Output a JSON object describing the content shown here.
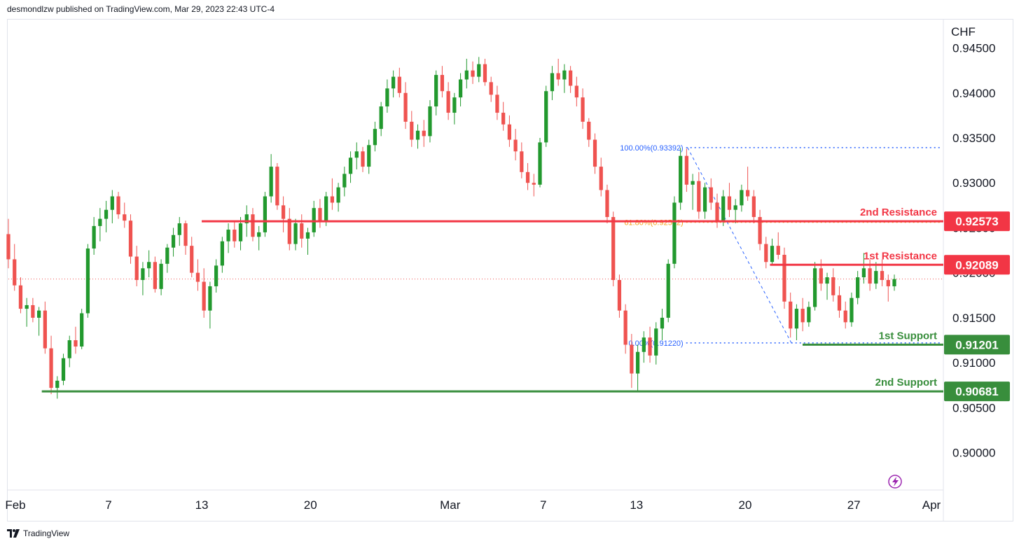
{
  "header": {
    "text": "desmondlzw published on TradingView.com, Mar 29, 2023 22:43 UTC-4"
  },
  "footer": {
    "brand": "TradingView"
  },
  "colors": {
    "up": "#22992e",
    "down": "#ef5350",
    "resistance": "#f23645",
    "support": "#388e3c",
    "fib": "#2962ff",
    "fib_mid": "#f7a21b",
    "last_price_line": "#ef5350"
  },
  "chart_data": {
    "type": "candlestick",
    "currency": "CHF",
    "ylim": [
      0.896,
      0.948
    ],
    "y_ticks": [
      "0.94500",
      "0.94000",
      "0.93500",
      "0.93000",
      "0.92500",
      "0.92000",
      "0.91500",
      "0.91000",
      "0.90500",
      "0.90000"
    ],
    "x_ticks": [
      {
        "label": "Feb",
        "day": 0
      },
      {
        "label": "7",
        "day": 6
      },
      {
        "label": "13",
        "day": 12
      },
      {
        "label": "20",
        "day": 19
      },
      {
        "label": "Mar",
        "day": 28
      },
      {
        "label": "7",
        "day": 34
      },
      {
        "label": "13",
        "day": 40
      },
      {
        "label": "20",
        "day": 47
      },
      {
        "label": "27",
        "day": 54
      },
      {
        "label": "Apr",
        "day": 59
      }
    ],
    "x_domain": [
      0,
      59
    ],
    "levels": [
      {
        "name": "2nd Resistance",
        "value": "0.92573",
        "price": 0.92573,
        "kind": "resistance",
        "start_day": 12.0
      },
      {
        "name": "1st Resistance",
        "value": "0.92089",
        "price": 0.92089,
        "kind": "resistance",
        "start_day": 48.6
      },
      {
        "name": "1st Support",
        "value": "0.91201",
        "price": 0.91201,
        "kind": "support",
        "start_day": 50.7
      },
      {
        "name": "2nd Support",
        "value": "0.90681",
        "price": 0.90681,
        "kind": "support",
        "start_day": 1.7
      }
    ],
    "fib": {
      "top_label": "100.00%(0.93392)",
      "top": 0.93392,
      "mid_label": "61.80%(0.92562)",
      "mid": 0.92562,
      "bottom_label": "0.00%(0.91220)",
      "bottom": 0.9122,
      "start_day": 43.2
    },
    "last_price": 0.9193,
    "candles": [
      [
        0.9243,
        0.926,
        0.9205,
        0.9215
      ],
      [
        0.9215,
        0.9232,
        0.918,
        0.9186
      ],
      [
        0.9186,
        0.9195,
        0.9155,
        0.916
      ],
      [
        0.916,
        0.9172,
        0.914,
        0.9164
      ],
      [
        0.9164,
        0.9172,
        0.9145,
        0.915
      ],
      [
        0.915,
        0.9162,
        0.913,
        0.9158
      ],
      [
        0.9158,
        0.9168,
        0.911,
        0.9116
      ],
      [
        0.9116,
        0.913,
        0.9065,
        0.9072
      ],
      [
        0.9072,
        0.9085,
        0.906,
        0.908
      ],
      [
        0.908,
        0.911,
        0.9075,
        0.9105
      ],
      [
        0.9105,
        0.913,
        0.9095,
        0.9125
      ],
      [
        0.9125,
        0.914,
        0.911,
        0.9118
      ],
      [
        0.9118,
        0.916,
        0.9115,
        0.9155
      ],
      [
        0.9155,
        0.9232,
        0.915,
        0.9227
      ],
      [
        0.9227,
        0.9262,
        0.922,
        0.9252
      ],
      [
        0.9252,
        0.9272,
        0.9235,
        0.926
      ],
      [
        0.926,
        0.928,
        0.9245,
        0.927
      ],
      [
        0.927,
        0.9292,
        0.9255,
        0.9285
      ],
      [
        0.9285,
        0.929,
        0.926,
        0.9265
      ],
      [
        0.9265,
        0.9278,
        0.925,
        0.9258
      ],
      [
        0.9258,
        0.9265,
        0.921,
        0.9218
      ],
      [
        0.9218,
        0.923,
        0.9185,
        0.9192
      ],
      [
        0.9192,
        0.9212,
        0.9175,
        0.9205
      ],
      [
        0.9205,
        0.9225,
        0.9195,
        0.9212
      ],
      [
        0.9212,
        0.9218,
        0.9178,
        0.9182
      ],
      [
        0.9182,
        0.9215,
        0.9175,
        0.921
      ],
      [
        0.921,
        0.9232,
        0.92,
        0.9228
      ],
      [
        0.9228,
        0.925,
        0.9218,
        0.9242
      ],
      [
        0.9242,
        0.9262,
        0.923,
        0.9255
      ],
      [
        0.9255,
        0.9258,
        0.922,
        0.923
      ],
      [
        0.923,
        0.924,
        0.9195,
        0.92
      ],
      [
        0.92,
        0.9215,
        0.918,
        0.919
      ],
      [
        0.919,
        0.9205,
        0.915,
        0.9158
      ],
      [
        0.9158,
        0.919,
        0.9138,
        0.9185
      ],
      [
        0.9185,
        0.9215,
        0.9178,
        0.9208
      ],
      [
        0.9208,
        0.924,
        0.92,
        0.9235
      ],
      [
        0.9235,
        0.9255,
        0.9222,
        0.9248
      ],
      [
        0.9248,
        0.9258,
        0.9228,
        0.9235
      ],
      [
        0.9235,
        0.9262,
        0.9225,
        0.9255
      ],
      [
        0.9255,
        0.9275,
        0.924,
        0.9265
      ],
      [
        0.9265,
        0.9272,
        0.9235,
        0.924
      ],
      [
        0.924,
        0.9252,
        0.9225,
        0.9245
      ],
      [
        0.9245,
        0.929,
        0.924,
        0.9285
      ],
      [
        0.9285,
        0.9332,
        0.9278,
        0.9318
      ],
      [
        0.9318,
        0.9322,
        0.927,
        0.9275
      ],
      [
        0.9275,
        0.9285,
        0.9245,
        0.926
      ],
      [
        0.926,
        0.9272,
        0.9225,
        0.9232
      ],
      [
        0.9232,
        0.926,
        0.9225,
        0.9255
      ],
      [
        0.9255,
        0.9265,
        0.9228,
        0.9238
      ],
      [
        0.9238,
        0.925,
        0.922,
        0.9245
      ],
      [
        0.9245,
        0.928,
        0.924,
        0.9272
      ],
      [
        0.9272,
        0.9282,
        0.925,
        0.9258
      ],
      [
        0.9258,
        0.929,
        0.9252,
        0.9285
      ],
      [
        0.9285,
        0.9305,
        0.927,
        0.9278
      ],
      [
        0.9278,
        0.93,
        0.9268,
        0.9295
      ],
      [
        0.9295,
        0.9318,
        0.9285,
        0.931
      ],
      [
        0.931,
        0.9335,
        0.93,
        0.9328
      ],
      [
        0.9328,
        0.9345,
        0.9315,
        0.9335
      ],
      [
        0.9335,
        0.934,
        0.9312,
        0.9318
      ],
      [
        0.9318,
        0.9348,
        0.931,
        0.9342
      ],
      [
        0.9342,
        0.9368,
        0.9335,
        0.936
      ],
      [
        0.936,
        0.939,
        0.9352,
        0.9385
      ],
      [
        0.9385,
        0.9415,
        0.9378,
        0.9405
      ],
      [
        0.9405,
        0.9425,
        0.9395,
        0.9418
      ],
      [
        0.9418,
        0.9428,
        0.9395,
        0.94
      ],
      [
        0.94,
        0.9412,
        0.936,
        0.9368
      ],
      [
        0.9368,
        0.938,
        0.934,
        0.9348
      ],
      [
        0.9348,
        0.9365,
        0.9338,
        0.9358
      ],
      [
        0.9358,
        0.937,
        0.934,
        0.9352
      ],
      [
        0.9352,
        0.9392,
        0.9345,
        0.9385
      ],
      [
        0.9385,
        0.9425,
        0.9375,
        0.942
      ],
      [
        0.942,
        0.943,
        0.9395,
        0.9402
      ],
      [
        0.9402,
        0.9412,
        0.937,
        0.9378
      ],
      [
        0.9378,
        0.94,
        0.9365,
        0.9395
      ],
      [
        0.9395,
        0.9422,
        0.9385,
        0.9415
      ],
      [
        0.9415,
        0.9438,
        0.9405,
        0.9425
      ],
      [
        0.9425,
        0.9435,
        0.941,
        0.9418
      ],
      [
        0.9418,
        0.944,
        0.9412,
        0.9432
      ],
      [
        0.9432,
        0.9438,
        0.9408,
        0.9412
      ],
      [
        0.9412,
        0.9418,
        0.939,
        0.9398
      ],
      [
        0.9398,
        0.9408,
        0.937,
        0.9378
      ],
      [
        0.9378,
        0.939,
        0.9358,
        0.9365
      ],
      [
        0.9365,
        0.9375,
        0.934,
        0.9348
      ],
      [
        0.9348,
        0.936,
        0.9325,
        0.9335
      ],
      [
        0.9335,
        0.9345,
        0.9305,
        0.9312
      ],
      [
        0.9312,
        0.9322,
        0.9292,
        0.93
      ],
      [
        0.93,
        0.931,
        0.9285,
        0.9298
      ],
      [
        0.9298,
        0.935,
        0.9295,
        0.9345
      ],
      [
        0.9345,
        0.9408,
        0.934,
        0.9402
      ],
      [
        0.9402,
        0.943,
        0.9392,
        0.9422
      ],
      [
        0.9422,
        0.9438,
        0.9408,
        0.9415
      ],
      [
        0.9415,
        0.9432,
        0.94,
        0.9425
      ],
      [
        0.9425,
        0.943,
        0.94,
        0.9408
      ],
      [
        0.9408,
        0.9418,
        0.9385,
        0.9395
      ],
      [
        0.9395,
        0.9405,
        0.936,
        0.9368
      ],
      [
        0.9368,
        0.9372,
        0.934,
        0.9348
      ],
      [
        0.9348,
        0.9355,
        0.931,
        0.9318
      ],
      [
        0.9318,
        0.9328,
        0.9285,
        0.9292
      ],
      [
        0.9292,
        0.9298,
        0.9255,
        0.9262
      ],
      [
        0.9262,
        0.9268,
        0.9185,
        0.9192
      ],
      [
        0.9192,
        0.9198,
        0.915,
        0.9158
      ],
      [
        0.9158,
        0.9165,
        0.911,
        0.912
      ],
      [
        0.912,
        0.9132,
        0.9072,
        0.9088
      ],
      [
        0.9088,
        0.912,
        0.9068,
        0.9112
      ],
      [
        0.9112,
        0.9135,
        0.91,
        0.9128
      ],
      [
        0.9128,
        0.914,
        0.91,
        0.9108
      ],
      [
        0.9108,
        0.9145,
        0.9098,
        0.9138
      ],
      [
        0.9138,
        0.916,
        0.9125,
        0.915
      ],
      [
        0.915,
        0.9215,
        0.9145,
        0.921
      ],
      [
        0.921,
        0.9285,
        0.9205,
        0.9278
      ],
      [
        0.9278,
        0.9339,
        0.927,
        0.933
      ],
      [
        0.933,
        0.9338,
        0.929,
        0.9298
      ],
      [
        0.9298,
        0.931,
        0.927,
        0.9302
      ],
      [
        0.9302,
        0.9312,
        0.926,
        0.9268
      ],
      [
        0.9268,
        0.93,
        0.926,
        0.9295
      ],
      [
        0.9295,
        0.9305,
        0.927,
        0.9278
      ],
      [
        0.9278,
        0.9288,
        0.925,
        0.9258
      ],
      [
        0.9258,
        0.9292,
        0.9252,
        0.9285
      ],
      [
        0.9285,
        0.93,
        0.9262,
        0.927
      ],
      [
        0.927,
        0.9282,
        0.9255,
        0.9275
      ],
      [
        0.9275,
        0.9298,
        0.9268,
        0.9292
      ],
      [
        0.9292,
        0.9318,
        0.928,
        0.9285
      ],
      [
        0.9285,
        0.9292,
        0.9255,
        0.9262
      ],
      [
        0.9262,
        0.927,
        0.9225,
        0.9232
      ],
      [
        0.9232,
        0.924,
        0.9205,
        0.9212
      ],
      [
        0.9212,
        0.9238,
        0.9208,
        0.923
      ],
      [
        0.923,
        0.9245,
        0.9215,
        0.922
      ],
      [
        0.922,
        0.9228,
        0.916,
        0.9168
      ],
      [
        0.9168,
        0.9178,
        0.9128,
        0.9138
      ],
      [
        0.9138,
        0.9165,
        0.9125,
        0.916
      ],
      [
        0.916,
        0.9172,
        0.9135,
        0.9145
      ],
      [
        0.9145,
        0.9168,
        0.914,
        0.9162
      ],
      [
        0.9162,
        0.9212,
        0.9158,
        0.9205
      ],
      [
        0.9205,
        0.9215,
        0.918,
        0.9188
      ],
      [
        0.9188,
        0.92,
        0.917,
        0.9195
      ],
      [
        0.9195,
        0.9205,
        0.9168,
        0.9175
      ],
      [
        0.9175,
        0.9185,
        0.915,
        0.9158
      ],
      [
        0.9158,
        0.9168,
        0.9138,
        0.9145
      ],
      [
        0.9145,
        0.9178,
        0.914,
        0.9172
      ],
      [
        0.9172,
        0.9202,
        0.9165,
        0.9195
      ],
      [
        0.9195,
        0.9222,
        0.9188,
        0.9205
      ],
      [
        0.9205,
        0.9215,
        0.918,
        0.9188
      ],
      [
        0.9188,
        0.9212,
        0.9182,
        0.9202
      ],
      [
        0.9202,
        0.9215,
        0.9185,
        0.9192
      ],
      [
        0.9192,
        0.9198,
        0.9168,
        0.9185
      ],
      [
        0.9185,
        0.9198,
        0.918,
        0.9193
      ]
    ]
  }
}
